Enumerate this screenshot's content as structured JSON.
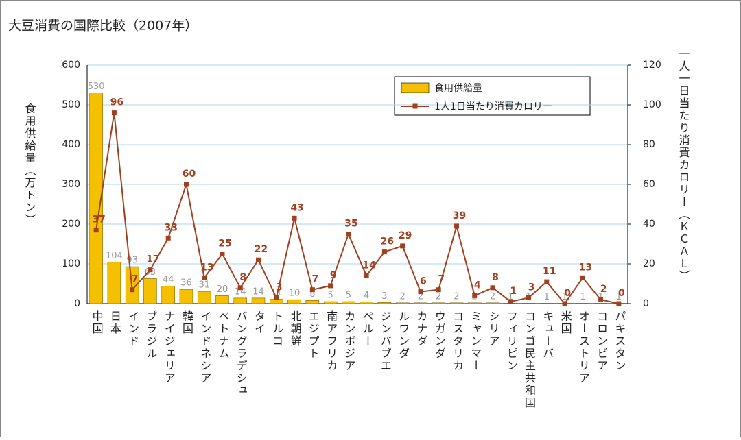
{
  "chart_data": {
    "type": "bar_line",
    "title": "大豆消費の国際比較（2007年）",
    "y_label": "食用供給量（万トン）",
    "y2_label": "一人一日当たり消費カロリー（ＫＣＡＬ）",
    "categories": [
      "中国",
      "日本",
      "インド",
      "ブラジル",
      "ナイジェリア",
      "韓国",
      "インドネシア",
      "ベトナム",
      "バングラデシュ",
      "タイ",
      "トルコ",
      "北朝鮮",
      "エジプト",
      "南アフリカ",
      "カンボジア",
      "ペルー",
      "ジンバブエ",
      "ルワンダ",
      "カナダ",
      "ウガンダ",
      "コスタリカ",
      "ミャンマー",
      "シリア",
      "フィリピン",
      "コンゴ民主共和国",
      "キューバ",
      "米国",
      "オーストリア",
      "コロンビア",
      "パキスタン"
    ],
    "series": [
      {
        "name": "食用供給量",
        "color": "#f5c000",
        "values": [
          530,
          104,
          93,
          63,
          44,
          36,
          31,
          20,
          14,
          14,
          11,
          10,
          8,
          5,
          5,
          4,
          3,
          2,
          2,
          2,
          2,
          2,
          2,
          1,
          1,
          1,
          1,
          1,
          1,
          1
        ]
      },
      {
        "name": "1人1日当たり消費カロリー",
        "color": "#a0401e",
        "axis": "y2",
        "values": [
          37,
          96,
          7,
          17,
          33,
          60,
          13,
          25,
          8,
          22,
          3,
          43,
          7,
          9,
          35,
          14,
          26,
          29,
          6,
          7,
          39,
          4,
          8,
          1,
          3,
          11,
          0,
          13,
          2,
          0
        ]
      }
    ],
    "ylim": [
      0,
      600
    ],
    "yticks": [
      0,
      100,
      200,
      300,
      400,
      500,
      600
    ],
    "y2lim": [
      0,
      120
    ],
    "y2ticks": [
      0,
      20,
      40,
      60,
      80,
      100,
      120
    ],
    "grid": true,
    "legend": "top-right"
  }
}
